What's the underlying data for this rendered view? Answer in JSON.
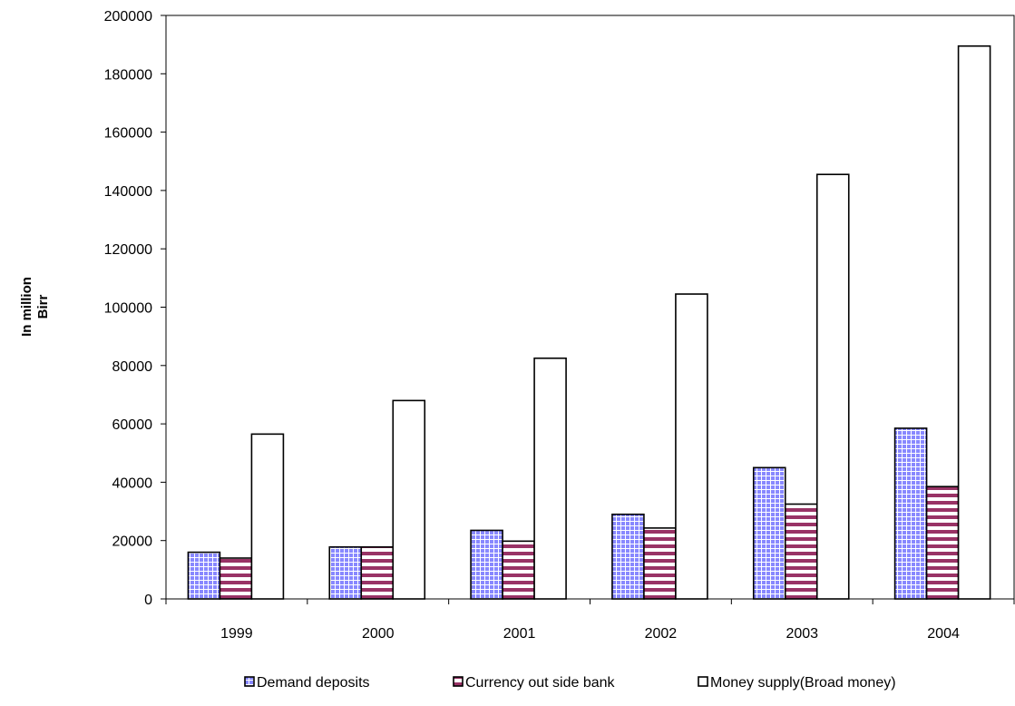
{
  "chart_data": {
    "type": "bar",
    "title": "",
    "xlabel": "",
    "ylabel": "In million Birr",
    "ylabel_lines": [
      "In million",
      "Birr"
    ],
    "categories": [
      "1999",
      "2000",
      "2001",
      "2002",
      "2003",
      "2004"
    ],
    "ylim": [
      0,
      200000
    ],
    "yticks": [
      0,
      20000,
      40000,
      60000,
      80000,
      100000,
      120000,
      140000,
      160000,
      180000,
      200000
    ],
    "grid": false,
    "legend_position": "bottom",
    "series": [
      {
        "name": "Demand deposits",
        "values": [
          16000,
          17800,
          23500,
          29000,
          45000,
          58500
        ],
        "color": "#8888ff",
        "pattern": "grid"
      },
      {
        "name": "Currency out side bank",
        "values": [
          14000,
          17800,
          19800,
          24300,
          32500,
          38500
        ],
        "color": "#993366",
        "pattern": "horizontal-stripes"
      },
      {
        "name": "Money supply(Broad money)",
        "values": [
          56500,
          68000,
          82500,
          104500,
          145500,
          189500
        ],
        "color": "#ffffff",
        "pattern": "solid"
      }
    ]
  }
}
